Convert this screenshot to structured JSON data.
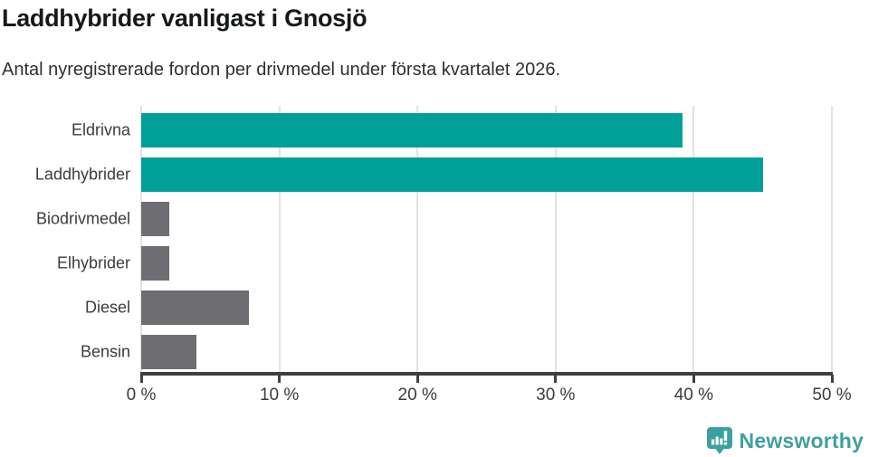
{
  "header": {
    "title": "Laddhybrider vanligast i Gnosjö",
    "subtitle": "Antal nyregistrerade fordon per drivmedel under första kvartalet 2026."
  },
  "chart_data": {
    "type": "bar",
    "orientation": "horizontal",
    "title": "Laddhybrider vanligast i Gnosjö",
    "subtitle": "Antal nyregistrerade fordon per drivmedel under första kvartalet 2026.",
    "categories": [
      "Eldrivna",
      "Laddhybrider",
      "Biodrivmedel",
      "Elhybrider",
      "Diesel",
      "Bensin"
    ],
    "values": [
      39.2,
      45.0,
      2.0,
      2.0,
      7.8,
      4.0
    ],
    "unit": "%",
    "bar_colors": [
      "#00a099",
      "#00a099",
      "#6d6d72",
      "#6d6d72",
      "#6d6d72",
      "#6d6d72"
    ],
    "highlight_color": "#00a099",
    "default_color": "#6d6d72",
    "xlim": [
      0,
      50
    ],
    "x_tick_values": [
      0,
      10,
      20,
      30,
      40,
      50
    ],
    "x_tick_labels": [
      "0 %",
      "10 %",
      "20 %",
      "30 %",
      "40 %",
      "50 %"
    ],
    "grid": true,
    "gridline_color": "#e3e3e3",
    "axis_color": "#3e4041",
    "xlabel": "",
    "ylabel": ""
  },
  "footer": {
    "brand": "Newsworthy",
    "brand_color": "#41a09d"
  }
}
